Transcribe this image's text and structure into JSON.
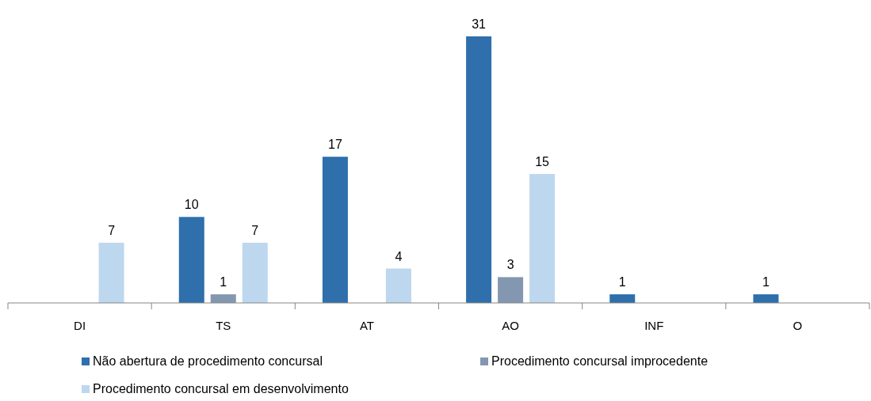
{
  "chart_data": {
    "type": "bar",
    "categories": [
      "DI",
      "TS",
      "AT",
      "AO",
      "INF",
      "O"
    ],
    "series": [
      {
        "name": "Não abertura de procedimento concursal",
        "color": "#2e6fac",
        "values": [
          null,
          10,
          17,
          31,
          1,
          1
        ]
      },
      {
        "name": "Procedimento concursal improcedente",
        "color": "#8497b0",
        "values": [
          null,
          1,
          null,
          3,
          null,
          null
        ]
      },
      {
        "name": "Procedimento concursal em desenvolvimento",
        "color": "#bdd7ee",
        "values": [
          7,
          7,
          4,
          15,
          null,
          null
        ]
      }
    ],
    "data_labels": true,
    "legend": "bottom"
  }
}
